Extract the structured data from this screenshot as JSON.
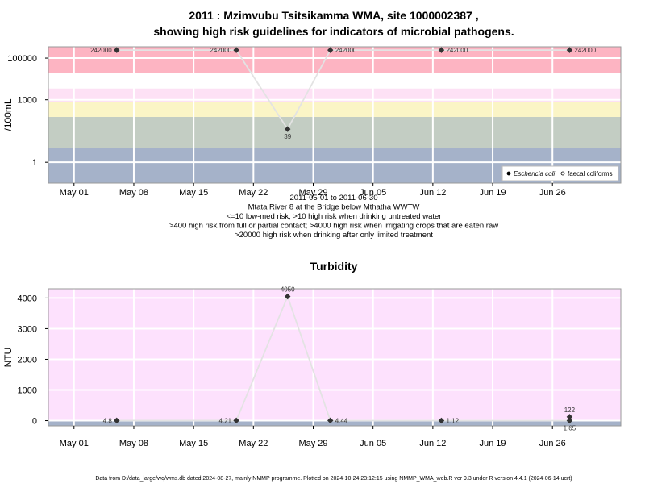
{
  "chart_data": [
    {
      "type": "scatter",
      "title": "2011 : Mzimvubu Tsitsikamma WMA, site 1000002387 ,",
      "subtitle": "showing high risk guidelines for indicators of microbial pathogens.",
      "xlabel": "",
      "ylabel": "/100mL",
      "yscale": "log",
      "ylim": [
        0.1,
        350000
      ],
      "xlim": [
        "2011-04-28",
        "2011-07-04"
      ],
      "x_ticks": [
        {
          "date": "2011-05-01",
          "label": "May 01"
        },
        {
          "date": "2011-05-08",
          "label": "May 08"
        },
        {
          "date": "2011-05-15",
          "label": "May 15"
        },
        {
          "date": "2011-05-22",
          "label": "May 22"
        },
        {
          "date": "2011-05-29",
          "label": "May 29"
        },
        {
          "date": "2011-06-05",
          "label": "Jun 05"
        },
        {
          "date": "2011-06-12",
          "label": "Jun 12"
        },
        {
          "date": "2011-06-19",
          "label": "Jun 19"
        },
        {
          "date": "2011-06-26",
          "label": "Jun 26"
        }
      ],
      "y_ticks": [
        {
          "value": 1,
          "label": "1"
        },
        {
          "value": 1000,
          "label": "1000"
        },
        {
          "value": 100000,
          "label": "100000"
        }
      ],
      "risk_bands": [
        {
          "from": 0.1,
          "to": 5,
          "color": "#a5b2c9"
        },
        {
          "from": 5,
          "to": 150,
          "color": "#c3cdc3"
        },
        {
          "from": 150,
          "to": 800,
          "color": "#fbf5c6"
        },
        {
          "from": 800,
          "to": 3500,
          "color": "#fde1f5"
        },
        {
          "from": 3500,
          "to": 20000,
          "color": "#ffffff"
        },
        {
          "from": 20000,
          "to": 350000,
          "color": "#fdb4c2"
        }
      ],
      "series": [
        {
          "name": "Eschericia coli",
          "color": "#333333",
          "line_color": "#e3e3e3",
          "points": [
            {
              "x": "2011-05-06",
              "y": 242000,
              "label": "242000",
              "label_side": "left"
            },
            {
              "x": "2011-05-20",
              "y": 242000,
              "label": "242000",
              "label_side": "left"
            },
            {
              "x": "2011-05-26",
              "y": 39,
              "label": "39",
              "label_side": "below"
            },
            {
              "x": "2011-05-31",
              "y": 242000,
              "label": "242000",
              "label_side": "right"
            },
            {
              "x": "2011-06-13",
              "y": 242000,
              "label": "242000",
              "label_side": "right"
            },
            {
              "x": "2011-06-28",
              "y": 242000,
              "label": "242000",
              "label_side": "right"
            }
          ]
        }
      ],
      "legend": {
        "placement": "bottom-right",
        "entries": [
          {
            "label": "Eschericia coli",
            "marker": "filled"
          },
          {
            "label": "faecal coliforms",
            "marker": "open"
          }
        ]
      },
      "caption_lines": [
        "2011-05-01 to 2011-06-30",
        "Mtata River 8 at the Bridge below Mthatha WWTW",
        "<=10 low-med risk; >10 high risk when drinking untreated water",
        ">400 high risk from full or partial contact; >4000 high risk when irrigating crops that are eaten raw",
        ">20000 high risk when drinking after only limited treatment"
      ]
    },
    {
      "type": "scatter",
      "title": "Turbidity",
      "xlabel": "",
      "ylabel": "NTU",
      "ylim": [
        -170,
        4300
      ],
      "xlim": [
        "2011-04-28",
        "2011-07-04"
      ],
      "x_ticks": [
        {
          "date": "2011-05-01",
          "label": "May 01"
        },
        {
          "date": "2011-05-08",
          "label": "May 08"
        },
        {
          "date": "2011-05-15",
          "label": "May 15"
        },
        {
          "date": "2011-05-22",
          "label": "May 22"
        },
        {
          "date": "2011-05-29",
          "label": "May 29"
        },
        {
          "date": "2011-06-05",
          "label": "Jun 05"
        },
        {
          "date": "2011-06-12",
          "label": "Jun 12"
        },
        {
          "date": "2011-06-19",
          "label": "Jun 19"
        },
        {
          "date": "2011-06-26",
          "label": "Jun 26"
        }
      ],
      "y_ticks": [
        {
          "value": 0,
          "label": "0"
        },
        {
          "value": 1000,
          "label": "1000"
        },
        {
          "value": 2000,
          "label": "2000"
        },
        {
          "value": 3000,
          "label": "3000"
        },
        {
          "value": 4000,
          "label": "4000"
        }
      ],
      "risk_bands": [
        {
          "from": -170,
          "to": 1,
          "color": "#a5b2c9"
        },
        {
          "from": 1,
          "to": 4300,
          "color": "#fde1fd"
        }
      ],
      "series": [
        {
          "name": "",
          "color": "#333333",
          "line_color": "#e3e3e3",
          "points": [
            {
              "x": "2011-05-06",
              "y": 4.8,
              "label": "4.8",
              "label_side": "left"
            },
            {
              "x": "2011-05-20",
              "y": 4.21,
              "label": "4.21",
              "label_side": "left"
            },
            {
              "x": "2011-05-26",
              "y": 4050,
              "label": "4050",
              "label_side": "above"
            },
            {
              "x": "2011-05-31",
              "y": 4.44,
              "label": "4.44",
              "label_side": "right"
            },
            {
              "x": "2011-06-13",
              "y": 1.12,
              "label": "1.12",
              "label_side": "right"
            },
            {
              "x": "2011-06-28",
              "y": 122,
              "label": "122",
              "label_side": "above",
              "connect": false
            },
            {
              "x": "2011-06-28",
              "y": 1.65,
              "label": "1.65",
              "label_side": "below"
            }
          ]
        }
      ]
    }
  ],
  "footer": {
    "text": "Data from D:/data_large/wq/wms.db dated 2024-08-27, mainly NMMP programme. Plotted on 2024-10-24 23:12:15 using NMMP_WMA_web.R ver 9.3 under R version 4.4.1 (2024-06-14 ucrt)"
  }
}
